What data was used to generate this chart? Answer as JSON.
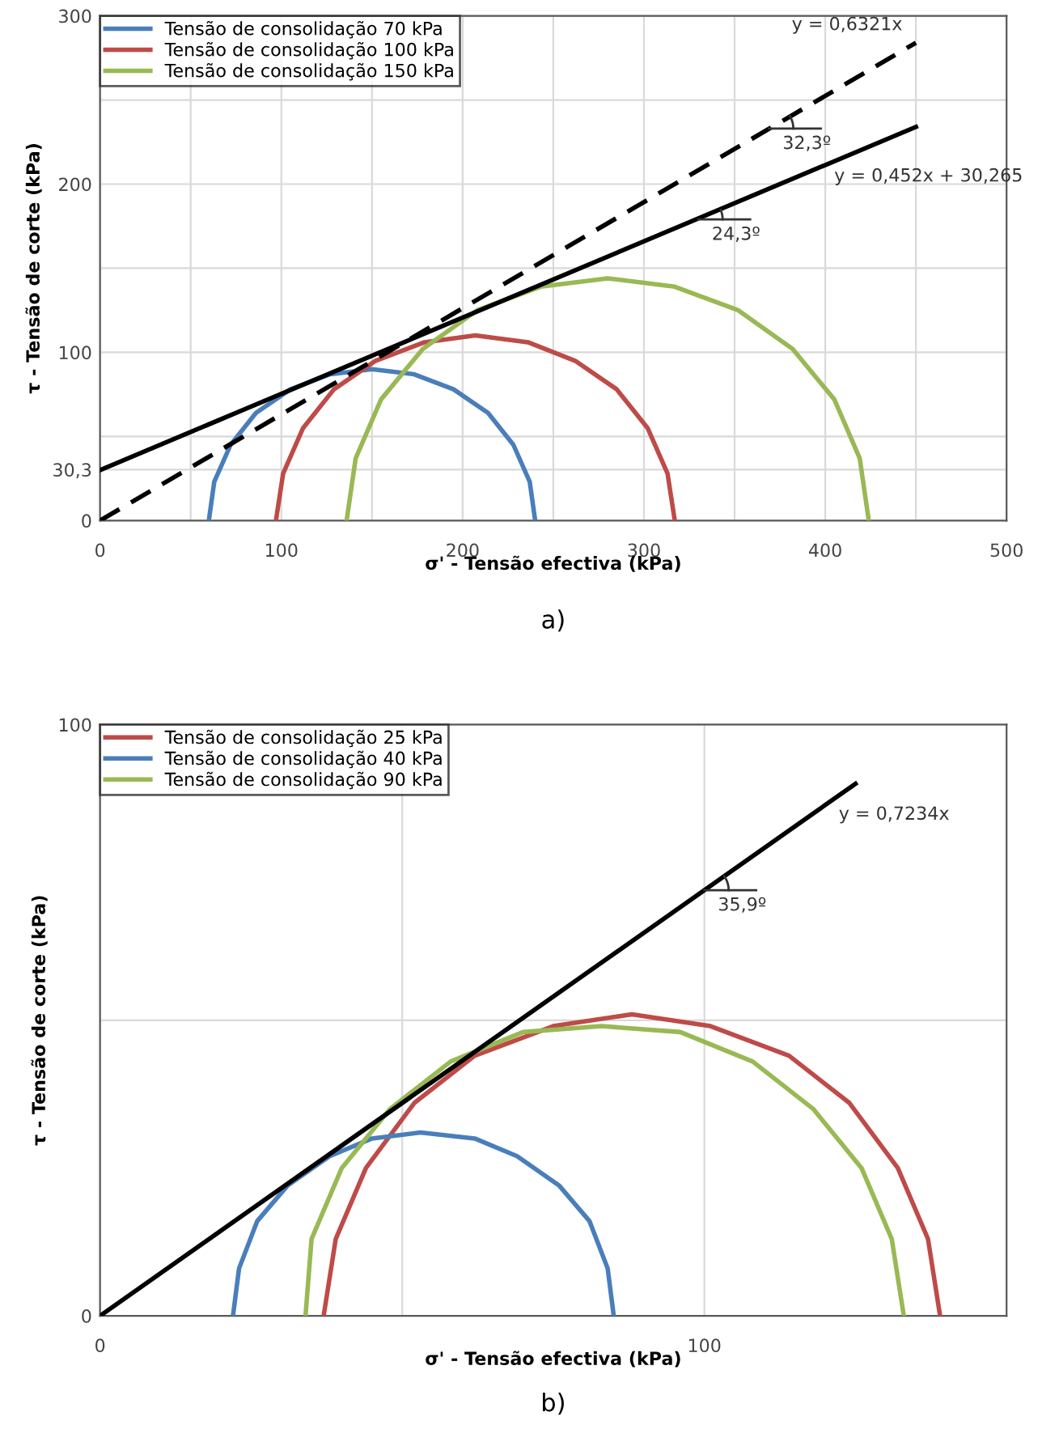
{
  "chart_data": [
    {
      "type": "line",
      "title": "a)",
      "xlabel": "σ' - Tensão efectiva (kPa)",
      "ylabel": "τ - Tensão de corte (kPa)",
      "xlim": [
        0,
        500
      ],
      "xticks": [
        0,
        {
          "value": 50,
          "label": null
        },
        100,
        {
          "value": 150,
          "label": null
        },
        200,
        {
          "value": 250,
          "label": null
        },
        300,
        {
          "value": 350,
          "label": null
        },
        400,
        {
          "value": 450,
          "label": null
        },
        500
      ],
      "ylim": [
        0,
        300
      ],
      "yticks": [
        0,
        {
          "value": 30.3,
          "label": "30,3"
        },
        {
          "value": 50,
          "label": null
        },
        100,
        {
          "value": 150,
          "label": null
        },
        200,
        {
          "value": 250,
          "label": null
        },
        300
      ],
      "grid": true,
      "legend": "top left",
      "marker": "none",
      "series": [
        {
          "name": "Tensão de consolidação 70 kPa",
          "color": "#4a7ebb",
          "x": [
            60,
            63,
            72,
            86,
            105,
            127,
            150,
            173,
            195,
            214,
            228,
            237,
            240
          ],
          "values": [
            0,
            23,
            45,
            64,
            78,
            87,
            90,
            87,
            78,
            64,
            45,
            23,
            0
          ]
        },
        {
          "name": "Tensão de consolidação 100 kPa",
          "color": "#be4b48",
          "x": [
            97,
            101,
            112,
            129,
            152,
            179,
            207,
            236,
            262,
            285,
            302,
            313,
            317
          ],
          "values": [
            0,
            28,
            55,
            78,
            95,
            106,
            110,
            106,
            95,
            78,
            55,
            28,
            0
          ]
        },
        {
          "name": "Tensão de consolidação 150 kPa",
          "color": "#98b954",
          "x": [
            136,
            141,
            155,
            178,
            208,
            243,
            280,
            317,
            352,
            382,
            405,
            419,
            424
          ],
          "values": [
            0,
            37,
            72,
            102,
            125,
            139,
            144,
            139,
            125,
            102,
            72,
            37,
            0
          ]
        },
        {
          "color": "#000000",
          "line_style": "dashed",
          "x": [
            0,
            450
          ],
          "values": [
            0,
            284
          ]
        },
        {
          "color": "#000000",
          "line_style": "solid",
          "x": [
            0,
            450
          ],
          "values": [
            30,
            234
          ]
        }
      ],
      "annotations": [
        {
          "text": "y = 0,6321x",
          "x": 450,
          "y": 284
        },
        {
          "text": "y = 0,452x + 30,265",
          "x": 400,
          "y": 211
        },
        {
          "text": "32,3º",
          "x": 369,
          "y": 233
        },
        {
          "text": "24,3º",
          "x": 330,
          "y": 179
        }
      ]
    },
    {
      "type": "line",
      "title": "b)",
      "xlabel": "σ' - Tensão efectiva (kPa)",
      "ylabel": "τ - Tensão de corte (kPa)",
      "xlim": [
        0,
        150
      ],
      "xticks": [
        0,
        {
          "value": 50,
          "label": null
        },
        100
      ],
      "ylim": [
        0,
        100
      ],
      "yticks": [
        0,
        {
          "value": 50,
          "label": null
        },
        100
      ],
      "grid": true,
      "legend": "top left",
      "marker": "none",
      "series": [
        {
          "name": "Tensão de consolidação 25 kPa",
          "color": "#be4b48",
          "x": [
            37,
            39,
            44,
            52,
            62,
            75,
            88,
            101,
            114,
            124,
            132,
            137,
            139
          ],
          "values": [
            0,
            13,
            25,
            36,
            44,
            49,
            51,
            49,
            44,
            36,
            25,
            13,
            0
          ]
        },
        {
          "name": "Tensão de consolidação 40 kPa",
          "color": "#4a7ebb",
          "x": [
            22,
            23,
            26,
            31,
            38,
            45,
            53,
            62,
            69,
            76,
            81,
            84,
            85
          ],
          "values": [
            0,
            8,
            16,
            22,
            27,
            30,
            31,
            30,
            27,
            22,
            16,
            8,
            0
          ]
        },
        {
          "name": "Tensão de consolidação 90 kPa",
          "color": "#98b954",
          "x": [
            34,
            35,
            40,
            48,
            58,
            70,
            83,
            96,
            108,
            118,
            126,
            131,
            133
          ],
          "values": [
            0,
            13,
            25,
            35,
            43,
            48,
            49,
            48,
            43,
            35,
            25,
            13,
            0
          ]
        },
        {
          "color": "#000000",
          "line_style": "solid",
          "x": [
            0,
            125
          ],
          "values": [
            0,
            90
          ]
        }
      ],
      "annotations": [
        {
          "text": "y = 0,7234x",
          "x": 120,
          "y": 87
        },
        {
          "text": "35,9º",
          "x": 100,
          "y": 72
        }
      ]
    }
  ]
}
